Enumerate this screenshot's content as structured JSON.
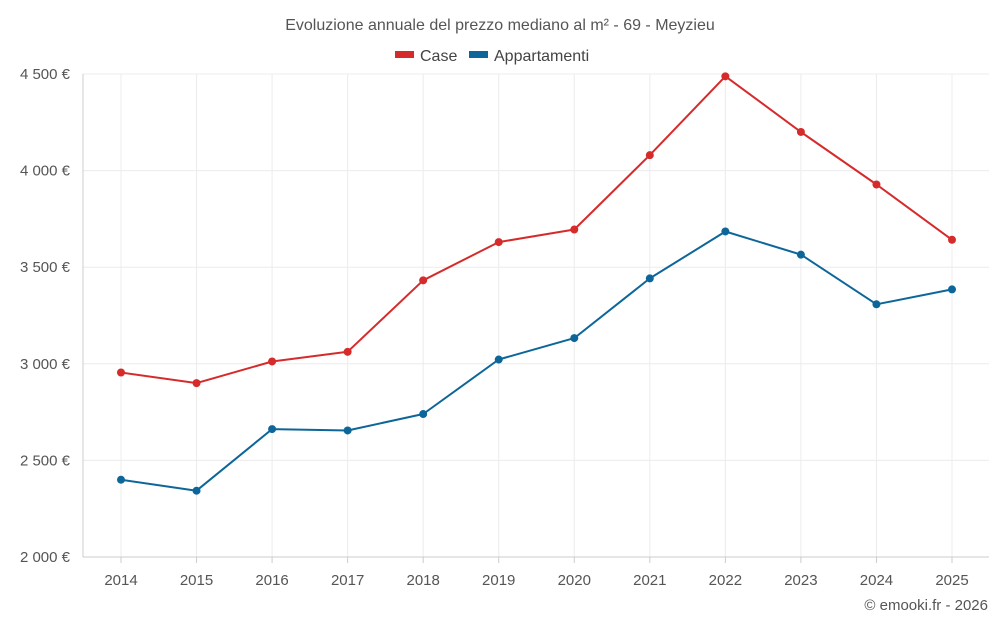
{
  "chart_data": {
    "type": "line",
    "title": "Evoluzione annuale del prezzo mediano al m² - 69 - Meyzieu",
    "xlabel": "",
    "ylabel": "",
    "categories": [
      "2014",
      "2015",
      "2016",
      "2017",
      "2018",
      "2019",
      "2020",
      "2021",
      "2022",
      "2023",
      "2024",
      "2025"
    ],
    "series": [
      {
        "name": "Case",
        "color": "#d62b2b",
        "values": [
          2955,
          2900,
          3012,
          3062,
          3432,
          3630,
          3695,
          4080,
          4488,
          4200,
          3928,
          3642
        ]
      },
      {
        "name": "Appartamenti",
        "color": "#0d6699",
        "values": [
          2400,
          2343,
          2662,
          2655,
          2740,
          3022,
          3133,
          3442,
          3685,
          3565,
          3308,
          3385
        ]
      }
    ],
    "ylim": [
      2000,
      4500
    ],
    "yticks": [
      2000,
      2500,
      3000,
      3500,
      4000,
      4500
    ],
    "ytick_labels": [
      "2 000 €",
      "2 500 €",
      "3 000 €",
      "3 500 €",
      "4 000 €",
      "4 500 €"
    ],
    "grid": true,
    "legend_position": "top-center"
  },
  "credit": "© emooki.fr - 2026"
}
